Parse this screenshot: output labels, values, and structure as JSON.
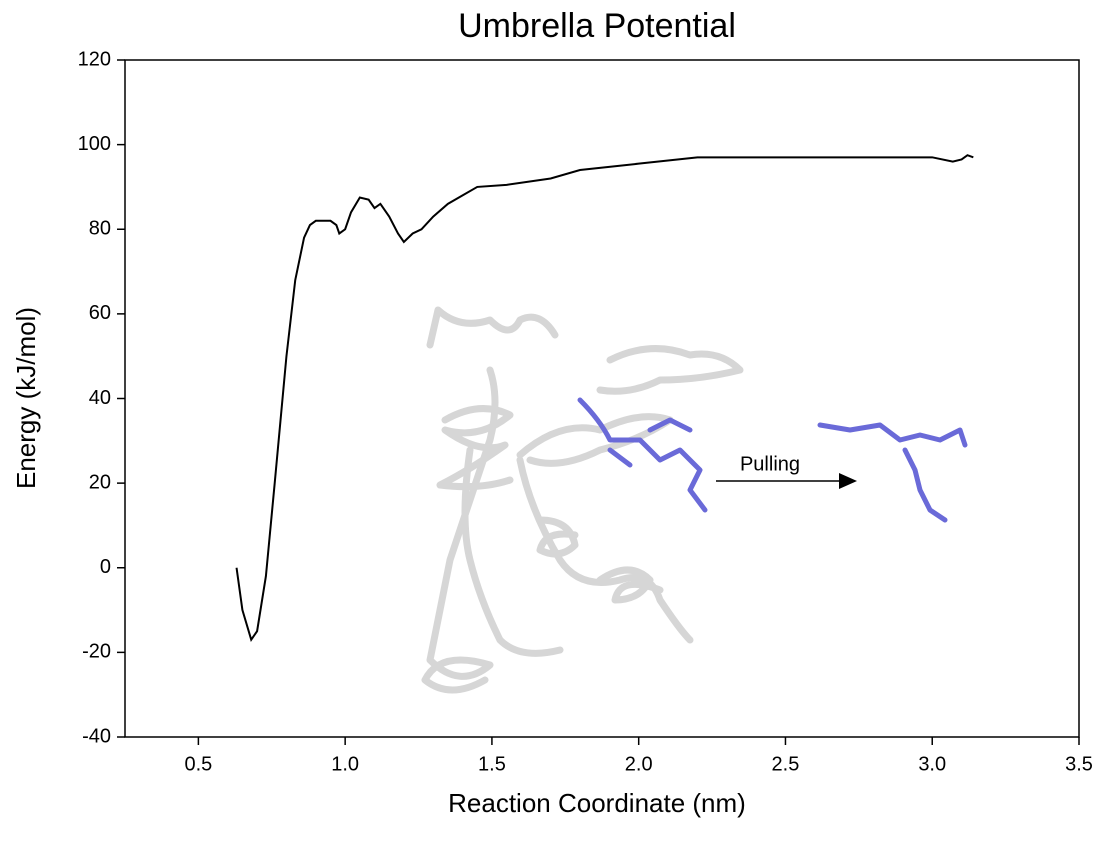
{
  "chart_data": {
    "type": "line",
    "title": "Umbrella Potential",
    "x_label": "Reaction Coordinate (nm)",
    "y_label": "Energy (kJ/mol)",
    "x": [
      0.63,
      0.65,
      0.68,
      0.7,
      0.73,
      0.76,
      0.8,
      0.83,
      0.86,
      0.88,
      0.9,
      0.95,
      0.97,
      0.98,
      1.0,
      1.02,
      1.05,
      1.08,
      1.1,
      1.12,
      1.15,
      1.18,
      1.2,
      1.23,
      1.26,
      1.3,
      1.35,
      1.4,
      1.45,
      1.55,
      1.7,
      1.8,
      2.0,
      2.2,
      2.5,
      2.8,
      3.0,
      3.07,
      3.1,
      3.12,
      3.14
    ],
    "series": [
      {
        "name": "Umbrella Potential",
        "color": "#000000",
        "values": [
          0,
          -10,
          -17,
          -15,
          -2,
          20,
          50,
          68,
          78,
          81,
          82,
          82,
          81,
          79,
          80,
          84,
          87.5,
          87,
          85,
          86,
          83,
          79,
          77,
          79,
          80,
          83,
          86,
          88,
          90,
          90.5,
          92,
          94,
          95.5,
          97,
          97,
          97,
          97,
          96,
          96.5,
          97.5,
          97
        ]
      }
    ],
    "xlim": [
      0.25,
      3.5
    ],
    "xticks": [
      0.5,
      {
        "value": 1,
        "label": "1.0"
      },
      1.5,
      {
        "value": 2,
        "label": "2.0"
      },
      2.5,
      {
        "value": 3,
        "label": "3.0"
      },
      3.5
    ],
    "ylim": [
      -40,
      120
    ],
    "yticks": [
      -40,
      -20,
      0,
      20,
      40,
      60,
      80,
      100,
      120
    ],
    "grid": false,
    "annotations": [
      {
        "text": "Pulling"
      }
    ]
  }
}
